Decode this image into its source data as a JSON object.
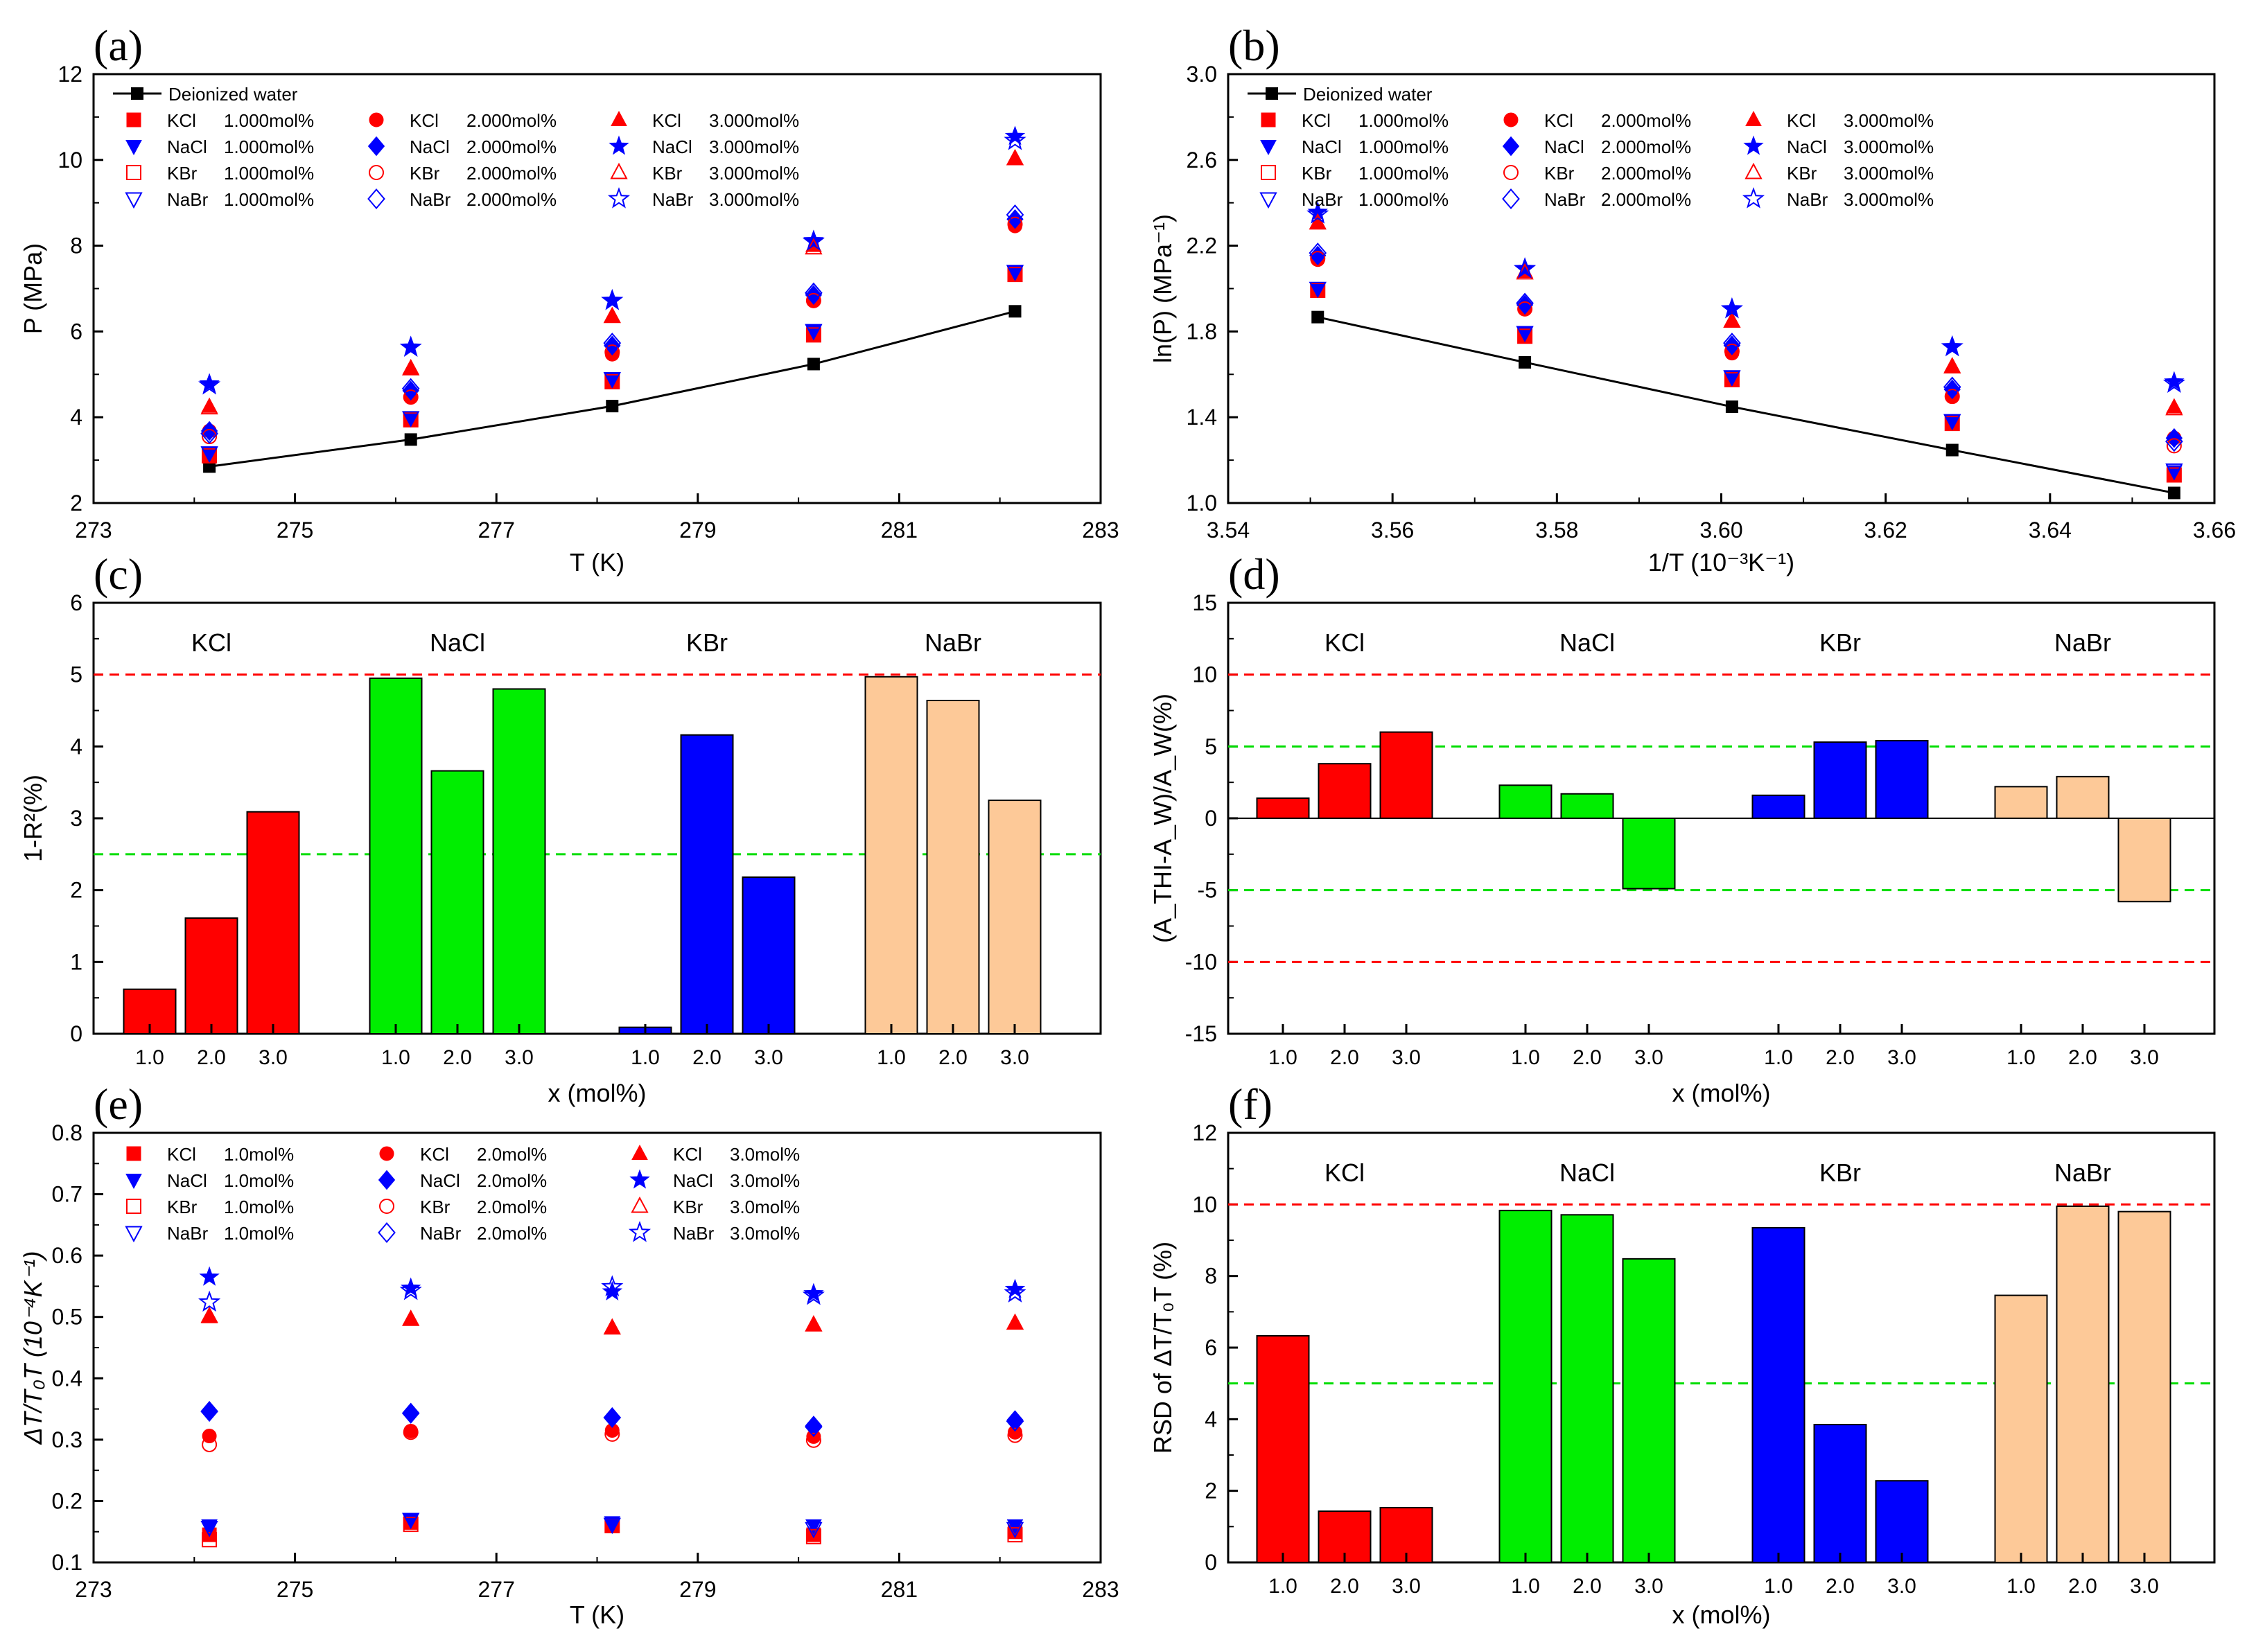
{
  "chart_data": [
    {
      "id": "a",
      "type": "scatter",
      "panel_label": "(a)",
      "xlabel": "T (K)",
      "ylabel": "P (MPa)",
      "xlim": [
        273,
        283
      ],
      "ylim": [
        2,
        12
      ],
      "xticks": [
        273,
        275,
        277,
        279,
        281,
        283
      ],
      "yticks": [
        2,
        4,
        6,
        8,
        10,
        12
      ],
      "x": [
        274.15,
        276.15,
        278.15,
        280.15,
        282.15
      ],
      "reference": {
        "name": "Deionized water",
        "values": [
          2.85,
          3.48,
          4.26,
          5.24,
          6.47
        ]
      },
      "series": [
        {
          "salt": "KCl",
          "conc": "1.000mol%",
          "values": [
            3.1,
            3.94,
            4.83,
            5.93,
            7.35
          ]
        },
        {
          "salt": "NaCl",
          "conc": "1.000mol%",
          "values": [
            3.15,
            3.98,
            4.88,
            6.0,
            7.38
          ]
        },
        {
          "salt": "KBr",
          "conc": "1.000mol%",
          "values": [
            3.1,
            3.94,
            4.83,
            5.92,
            7.33
          ]
        },
        {
          "salt": "NaBr",
          "conc": "1.000mol%",
          "values": [
            3.17,
            3.99,
            4.9,
            6.02,
            7.4
          ]
        },
        {
          "salt": "KCl",
          "conc": "2.000mol%",
          "values": [
            3.68,
            4.48,
            5.47,
            6.72,
            8.46
          ]
        },
        {
          "salt": "NaCl",
          "conc": "2.000mol%",
          "values": [
            3.68,
            4.62,
            5.67,
            6.85,
            8.62
          ]
        },
        {
          "salt": "KBr",
          "conc": "2.000mol%",
          "values": [
            3.55,
            4.47,
            5.52,
            6.72,
            8.5
          ]
        },
        {
          "salt": "NaBr",
          "conc": "2.000mol%",
          "values": [
            3.62,
            4.67,
            5.73,
            6.9,
            8.72
          ]
        },
        {
          "salt": "KCl",
          "conc": "3.000mol%",
          "values": [
            4.25,
            5.15,
            6.35,
            8.0,
            10.02
          ]
        },
        {
          "salt": "NaCl",
          "conc": "3.000mol%",
          "values": [
            4.78,
            5.63,
            6.72,
            8.12,
            10.55
          ]
        },
        {
          "salt": "KBr",
          "conc": "3.000mol%",
          "values": [
            4.22,
            5.13,
            6.35,
            7.95,
            10.03
          ]
        },
        {
          "salt": "NaBr",
          "conc": "3.000mol%",
          "values": [
            4.75,
            5.63,
            6.72,
            8.1,
            10.45
          ]
        }
      ]
    },
    {
      "id": "b",
      "type": "scatter",
      "panel_label": "(b)",
      "xlabel": "1/T (10⁻³K⁻¹)",
      "ylabel": "ln(P) (MPa⁻¹)",
      "xlim": [
        3.54,
        3.66
      ],
      "ylim": [
        1.0,
        3.0
      ],
      "xticks": [
        3.54,
        3.56,
        3.58,
        3.6,
        3.62,
        3.64,
        3.66
      ],
      "yticks": [
        1.0,
        1.4,
        1.8,
        2.2,
        2.6,
        3.0
      ],
      "x": [
        3.6551,
        3.6281,
        3.6013,
        3.5761,
        3.5509
      ],
      "reference": {
        "name": "Deionized water",
        "values": [
          1.047,
          1.247,
          1.449,
          1.656,
          1.867
        ]
      },
      "series": [
        {
          "salt": "KCl",
          "conc": "1.000mol%",
          "values": [
            1.131,
            1.371,
            1.575,
            1.78,
            1.995
          ]
        },
        {
          "salt": "NaCl",
          "conc": "1.000mol%",
          "values": [
            1.147,
            1.381,
            1.585,
            1.792,
            1.999
          ]
        },
        {
          "salt": "KBr",
          "conc": "1.000mol%",
          "values": [
            1.131,
            1.371,
            1.575,
            1.778,
            1.992
          ]
        },
        {
          "salt": "NaBr",
          "conc": "1.000mol%",
          "values": [
            1.154,
            1.384,
            1.589,
            1.795,
            2.001
          ]
        },
        {
          "salt": "KCl",
          "conc": "2.000mol%",
          "values": [
            1.303,
            1.5,
            1.699,
            1.905,
            2.135
          ]
        },
        {
          "salt": "NaCl",
          "conc": "2.000mol%",
          "values": [
            1.303,
            1.53,
            1.735,
            1.924,
            2.154
          ]
        },
        {
          "salt": "KBr",
          "conc": "2.000mol%",
          "values": [
            1.267,
            1.497,
            1.708,
            1.905,
            2.14
          ]
        },
        {
          "salt": "NaBr",
          "conc": "2.000mol%",
          "values": [
            1.287,
            1.541,
            1.746,
            1.932,
            2.166
          ]
        },
        {
          "salt": "KCl",
          "conc": "3.000mol%",
          "values": [
            1.447,
            1.639,
            1.848,
            2.079,
            2.305
          ]
        },
        {
          "salt": "NaCl",
          "conc": "3.000mol%",
          "values": [
            1.565,
            1.728,
            1.905,
            2.094,
            2.356
          ]
        },
        {
          "salt": "KBr",
          "conc": "3.000mol%",
          "values": [
            1.44,
            1.635,
            1.848,
            2.073,
            2.306
          ]
        },
        {
          "salt": "NaBr",
          "conc": "3.000mol%",
          "values": [
            1.558,
            1.728,
            1.905,
            2.092,
            2.347
          ]
        }
      ]
    },
    {
      "id": "c",
      "type": "bar",
      "panel_label": "(c)",
      "xlabel": "x (mol%)",
      "ylabel": "1-R²(%)",
      "ylim": [
        0,
        6
      ],
      "yticks": [
        0,
        1,
        2,
        3,
        4,
        5,
        6
      ],
      "categories": [
        "1.0",
        "2.0",
        "3.0"
      ],
      "groups": [
        {
          "name": "KCl",
          "color": "#ff0000",
          "values": [
            0.62,
            1.61,
            3.09
          ]
        },
        {
          "name": "NaCl",
          "color": "#00ee00",
          "values": [
            4.95,
            3.66,
            4.8
          ]
        },
        {
          "name": "KBr",
          "color": "#0000ff",
          "values": [
            0.09,
            4.16,
            2.18
          ]
        },
        {
          "name": "NaBr",
          "color": "#fdc998",
          "values": [
            4.97,
            4.64,
            3.25
          ]
        }
      ],
      "ref_lines": [
        {
          "value": 5,
          "color": "#ff0000"
        },
        {
          "value": 2.5,
          "color": "#00dd00"
        }
      ]
    },
    {
      "id": "d",
      "type": "bar",
      "panel_label": "(d)",
      "xlabel": "x (mol%)",
      "ylabel": "(A_THI-A_W)/A_W(%)",
      "ylim": [
        -15,
        15
      ],
      "yticks": [
        -15,
        -10,
        -5,
        0,
        5,
        10,
        15
      ],
      "categories": [
        "1.0",
        "2.0",
        "3.0"
      ],
      "groups": [
        {
          "name": "KCl",
          "color": "#ff0000",
          "values": [
            1.4,
            3.8,
            6.0
          ]
        },
        {
          "name": "NaCl",
          "color": "#00ee00",
          "values": [
            2.3,
            1.7,
            -4.9
          ]
        },
        {
          "name": "KBr",
          "color": "#0000ff",
          "values": [
            1.6,
            5.3,
            5.4
          ]
        },
        {
          "name": "NaBr",
          "color": "#fdc998",
          "values": [
            2.2,
            2.9,
            -5.8
          ]
        }
      ],
      "ref_lines": [
        {
          "value": 10,
          "color": "#ff0000"
        },
        {
          "value": -10,
          "color": "#ff0000"
        },
        {
          "value": 5,
          "color": "#00dd00"
        },
        {
          "value": -5,
          "color": "#00dd00"
        }
      ]
    },
    {
      "id": "e",
      "type": "scatter",
      "panel_label": "(e)",
      "xlabel": "T (K)",
      "ylabel": "ΔT/T₀T (10⁻⁴K⁻¹)",
      "xlim": [
        273,
        283
      ],
      "ylim": [
        0.1,
        0.8
      ],
      "xticks": [
        273,
        275,
        277,
        279,
        281,
        283
      ],
      "yticks": [
        0.1,
        0.2,
        0.3,
        0.4,
        0.5,
        0.6,
        0.7,
        0.8
      ],
      "x": [
        274.15,
        276.15,
        278.15,
        280.15,
        282.15
      ],
      "series": [
        {
          "salt": "KCl",
          "conc": "1.0mol%",
          "values": [
            0.145,
            0.165,
            0.16,
            0.145,
            0.15
          ]
        },
        {
          "salt": "NaCl",
          "conc": "1.0mol%",
          "values": [
            0.16,
            0.17,
            0.165,
            0.16,
            0.16
          ]
        },
        {
          "salt": "KBr",
          "conc": "1.0mol%",
          "values": [
            0.137,
            0.162,
            0.16,
            0.142,
            0.145
          ]
        },
        {
          "salt": "NaBr",
          "conc": "1.0mol%",
          "values": [
            0.157,
            0.17,
            0.162,
            0.155,
            0.155
          ]
        },
        {
          "salt": "KCl",
          "conc": "2.0mol%",
          "values": [
            0.306,
            0.314,
            0.315,
            0.305,
            0.312
          ]
        },
        {
          "salt": "NaCl",
          "conc": "2.0mol%",
          "values": [
            0.347,
            0.344,
            0.336,
            0.323,
            0.332
          ]
        },
        {
          "salt": "KBr",
          "conc": "2.0mol%",
          "values": [
            0.292,
            0.312,
            0.309,
            0.299,
            0.307
          ]
        },
        {
          "salt": "NaBr",
          "conc": "2.0mol%",
          "values": [
            0.346,
            0.343,
            0.336,
            0.321,
            0.33
          ]
        },
        {
          "salt": "KCl",
          "conc": "3.0mol%",
          "values": [
            0.5,
            0.497,
            0.483,
            0.488,
            0.49
          ]
        },
        {
          "salt": "NaCl",
          "conc": "3.0mol%",
          "values": [
            0.565,
            0.547,
            0.541,
            0.538,
            0.545
          ]
        },
        {
          "salt": "KBr",
          "conc": "3.0mol%",
          "values": [
            0.501,
            0.496,
            0.482,
            0.487,
            0.49
          ]
        },
        {
          "salt": "NaBr",
          "conc": "3.0mol%",
          "values": [
            0.524,
            0.543,
            0.549,
            0.535,
            0.539
          ]
        }
      ]
    },
    {
      "id": "f",
      "type": "bar",
      "panel_label": "(f)",
      "xlabel": "x (mol%)",
      "ylabel": "RSD of ΔT/T₀T (%)",
      "ylim": [
        0,
        12
      ],
      "yticks": [
        0,
        2,
        4,
        6,
        8,
        10,
        12
      ],
      "categories": [
        "1.0",
        "2.0",
        "3.0"
      ],
      "groups": [
        {
          "name": "KCl",
          "color": "#ff0000",
          "values": [
            6.33,
            1.43,
            1.53
          ]
        },
        {
          "name": "NaCl",
          "color": "#00ee00",
          "values": [
            9.83,
            9.71,
            8.48
          ]
        },
        {
          "name": "KBr",
          "color": "#0000ff",
          "values": [
            9.35,
            3.85,
            2.28
          ]
        },
        {
          "name": "NaBr",
          "color": "#fdc998",
          "values": [
            7.46,
            9.95,
            9.8
          ]
        }
      ],
      "ref_lines": [
        {
          "value": 10,
          "color": "#ff0000"
        },
        {
          "value": 5,
          "color": "#00dd00"
        }
      ]
    }
  ],
  "styles": {
    "KCl": {
      "color": "#ff0000",
      "fill": true,
      "marker": {
        "1": "square",
        "2": "circle",
        "3": "triangle"
      }
    },
    "NaCl": {
      "color": "#0000ff",
      "fill": true,
      "marker": {
        "1": "triangle-down",
        "2": "diamond",
        "3": "star"
      }
    },
    "KBr": {
      "color": "#ff0000",
      "fill": false,
      "marker": {
        "1": "square",
        "2": "circle",
        "3": "triangle"
      }
    },
    "NaBr": {
      "color": "#0000ff",
      "fill": false,
      "marker": {
        "1": "triangle-down",
        "2": "diamond",
        "3": "star"
      }
    }
  }
}
